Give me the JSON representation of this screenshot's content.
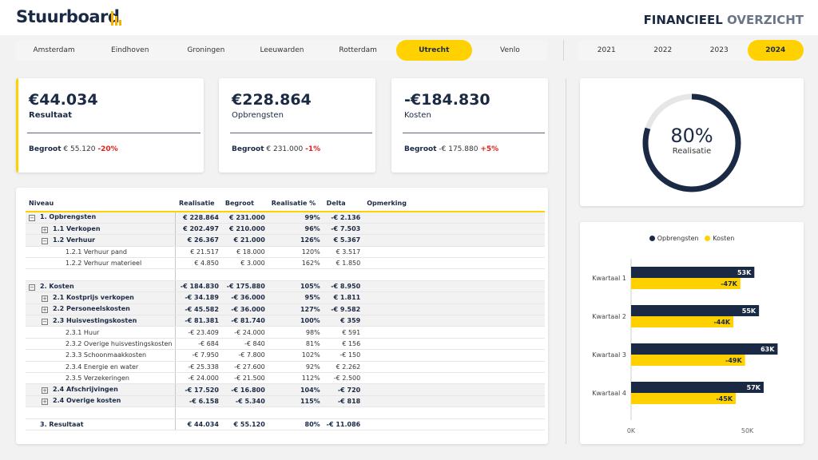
{
  "header": {
    "logo": "Stuurboard",
    "title_bold": "FINANCIEEL",
    "title_light": "OVERZICHT"
  },
  "cities": [
    "Amsterdam",
    "Eindhoven",
    "Groningen",
    "Leeuwarden",
    "Rotterdam",
    "Utrecht",
    "Venlo"
  ],
  "selected_city": "Utrecht",
  "years": [
    "2021",
    "2022",
    "2023",
    "2024"
  ],
  "selected_year": "2024",
  "kpis": [
    {
      "value": "€44.034",
      "label": "Resultaat",
      "budget_label": "Begroot",
      "budget_value": "€ 55.120",
      "delta": "-20%"
    },
    {
      "value": "€228.864",
      "label": "Opbrengsten",
      "budget_label": "Begroot",
      "budget_value": "€ 231.000",
      "delta": "-1%"
    },
    {
      "value": "-€184.830",
      "label": "Kosten",
      "budget_label": "Begroot",
      "budget_value": "-€ 175.880",
      "delta": "+5%"
    }
  ],
  "realisatie": {
    "percent_value": 80,
    "percent_text": "80%",
    "label": "Realisatie"
  },
  "table": {
    "headers": [
      "Niveau",
      "Realisatie",
      "Begroot",
      "Realisatie %",
      "Delta",
      "Opmerking"
    ],
    "rows": [
      {
        "level": 0,
        "toggle": "minus",
        "bold": true,
        "shade": true,
        "label": "1. Opbrengsten",
        "realisatie": "€ 228.864",
        "begroot": "€ 231.000",
        "pct": "99%",
        "delta": "-€ 2.136"
      },
      {
        "level": 1,
        "toggle": "plus",
        "bold": true,
        "shade": true,
        "label": "1.1 Verkopen",
        "realisatie": "€ 202.497",
        "begroot": "€ 210.000",
        "pct": "96%",
        "delta": "-€ 7.503"
      },
      {
        "level": 1,
        "toggle": "minus",
        "bold": true,
        "shade": true,
        "label": "1.2 Verhuur",
        "realisatie": "€ 26.367",
        "begroot": "€ 21.000",
        "pct": "126%",
        "delta": "€ 5.367"
      },
      {
        "level": 2,
        "toggle": "",
        "bold": false,
        "shade": false,
        "label": "1.2.1 Verhuur pand",
        "realisatie": "€ 21.517",
        "begroot": "€ 18.000",
        "pct": "120%",
        "delta": "€ 3.517"
      },
      {
        "level": 2,
        "toggle": "",
        "bold": false,
        "shade": false,
        "label": "1.2.2 Verhuur materieel",
        "realisatie": "€ 4.850",
        "begroot": "€ 3.000",
        "pct": "162%",
        "delta": "€ 1.850"
      },
      {
        "blank": true
      },
      {
        "level": 0,
        "toggle": "minus",
        "bold": true,
        "shade": true,
        "label": "2. Kosten",
        "realisatie": "-€ 184.830",
        "begroot": "-€ 175.880",
        "pct": "105%",
        "delta": "-€ 8.950"
      },
      {
        "level": 1,
        "toggle": "plus",
        "bold": true,
        "shade": true,
        "label": "2.1 Kostprijs verkopen",
        "realisatie": "-€ 34.189",
        "begroot": "-€ 36.000",
        "pct": "95%",
        "delta": "€ 1.811"
      },
      {
        "level": 1,
        "toggle": "plus",
        "bold": true,
        "shade": true,
        "label": "2.2 Personeelskosten",
        "realisatie": "-€ 45.582",
        "begroot": "-€ 36.000",
        "pct": "127%",
        "delta": "-€ 9.582"
      },
      {
        "level": 1,
        "toggle": "minus",
        "bold": true,
        "shade": true,
        "label": "2.3 Huisvestingskosten",
        "realisatie": "-€ 81.381",
        "begroot": "-€ 81.740",
        "pct": "100%",
        "delta": "€ 359"
      },
      {
        "level": 2,
        "toggle": "",
        "bold": false,
        "shade": false,
        "label": "2.3.1 Huur",
        "realisatie": "-€ 23.409",
        "begroot": "-€ 24.000",
        "pct": "98%",
        "delta": "€ 591"
      },
      {
        "level": 2,
        "toggle": "",
        "bold": false,
        "shade": false,
        "label": "2.3.2 Overige huisvestingskosten",
        "realisatie": "-€ 684",
        "begroot": "-€ 840",
        "pct": "81%",
        "delta": "€ 156"
      },
      {
        "level": 2,
        "toggle": "",
        "bold": false,
        "shade": false,
        "label": "2.3.3 Schoonmaakkosten",
        "realisatie": "-€ 7.950",
        "begroot": "-€ 7.800",
        "pct": "102%",
        "delta": "-€ 150"
      },
      {
        "level": 2,
        "toggle": "",
        "bold": false,
        "shade": false,
        "label": "2.3.4 Energie en water",
        "realisatie": "-€ 25.338",
        "begroot": "-€ 27.600",
        "pct": "92%",
        "delta": "€ 2.262"
      },
      {
        "level": 2,
        "toggle": "",
        "bold": false,
        "shade": false,
        "label": "2.3.5 Verzekeringen",
        "realisatie": "-€ 24.000",
        "begroot": "-€ 21.500",
        "pct": "112%",
        "delta": "-€ 2.500"
      },
      {
        "level": 1,
        "toggle": "plus",
        "bold": true,
        "shade": true,
        "label": "2.4 Afschrijvingen",
        "realisatie": "-€ 17.520",
        "begroot": "-€ 16.800",
        "pct": "104%",
        "delta": "-€ 720"
      },
      {
        "level": 1,
        "toggle": "plus",
        "bold": true,
        "shade": true,
        "label": "2.4 Overige kosten",
        "realisatie": "-€ 6.158",
        "begroot": "-€ 5.340",
        "pct": "115%",
        "delta": "-€ 818"
      },
      {
        "blank": true
      },
      {
        "level": 0,
        "toggle": "",
        "bold": true,
        "shade": false,
        "label": "3. Resultaat",
        "realisatie": "€ 44.034",
        "begroot": "€ 55.120",
        "pct": "80%",
        "delta": "-€ 11.086"
      }
    ]
  },
  "chart_data": {
    "type": "bar",
    "orientation": "horizontal",
    "categories": [
      "Kwartaal 1",
      "Kwartaal 2",
      "Kwartaal 3",
      "Kwartaal 4"
    ],
    "series": [
      {
        "name": "Opbrengsten",
        "values": [
          53,
          55,
          63,
          57
        ],
        "labels": [
          "53K",
          "55K",
          "63K",
          "57K"
        ],
        "color": "#1b2a44"
      },
      {
        "name": "Kosten",
        "values": [
          -47,
          -44,
          -49,
          -45
        ],
        "labels": [
          "-47K",
          "-44K",
          "-49K",
          "-45K"
        ],
        "color": "#ffd100"
      }
    ],
    "xticks": [
      "0K",
      "50K"
    ],
    "xlim": [
      0,
      68
    ],
    "legend": "top-center"
  },
  "colors": {
    "navy": "#1b2a44",
    "yellow": "#ffd100",
    "negative": "#e0201b"
  }
}
